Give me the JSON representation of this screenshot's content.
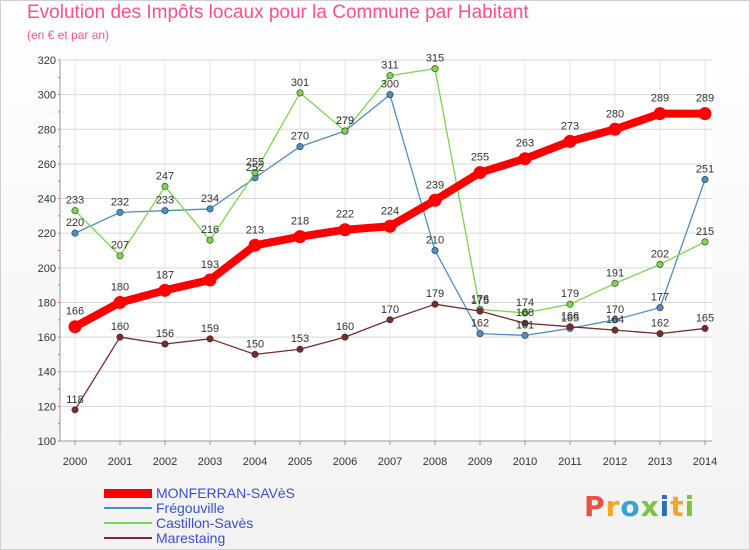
{
  "header": {
    "title": "Evolution des Impôts locaux pour la Commune par Habitant",
    "subtitle": "(en € et par an)"
  },
  "logo": {
    "text": "Proxiti",
    "colors": [
      "#e8523f",
      "#f5a623",
      "#3aa0d8",
      "#7cc243",
      "#2a6cc0",
      "#f5a623",
      "#7cc243"
    ]
  },
  "chart_data": {
    "type": "line",
    "x": [
      2000,
      2001,
      2002,
      2003,
      2004,
      2005,
      2006,
      2007,
      2008,
      2009,
      2010,
      2011,
      2012,
      2013,
      2014
    ],
    "ylim": [
      100,
      320
    ],
    "yticks": [
      100,
      120,
      140,
      160,
      180,
      200,
      220,
      240,
      260,
      280,
      300,
      320
    ],
    "grid": true,
    "legend_position": "bottom-left",
    "series": [
      {
        "name": "Frégouville",
        "color": "#4a8fc9",
        "values": [
          220,
          232,
          233,
          234,
          252,
          270,
          279,
          300,
          210,
          162,
          161,
          165,
          170,
          177,
          251
        ]
      },
      {
        "name": "Castillon-Savès",
        "color": "#7cd64a",
        "values": [
          233,
          207,
          247,
          216,
          255,
          301,
          279,
          311,
          315,
          176,
          174,
          179,
          191,
          202,
          215
        ]
      },
      {
        "name": "Marestaing",
        "color": "#7a2a2a",
        "values": [
          118,
          160,
          156,
          159,
          150,
          153,
          160,
          170,
          179,
          175,
          168,
          166,
          164,
          162,
          165
        ]
      },
      {
        "name": "MONFERRAN-SAVèS",
        "color": "#ff0000",
        "values": [
          166,
          180,
          187,
          193,
          213,
          218,
          222,
          224,
          239,
          255,
          263,
          273,
          280,
          289,
          289
        ]
      }
    ]
  }
}
